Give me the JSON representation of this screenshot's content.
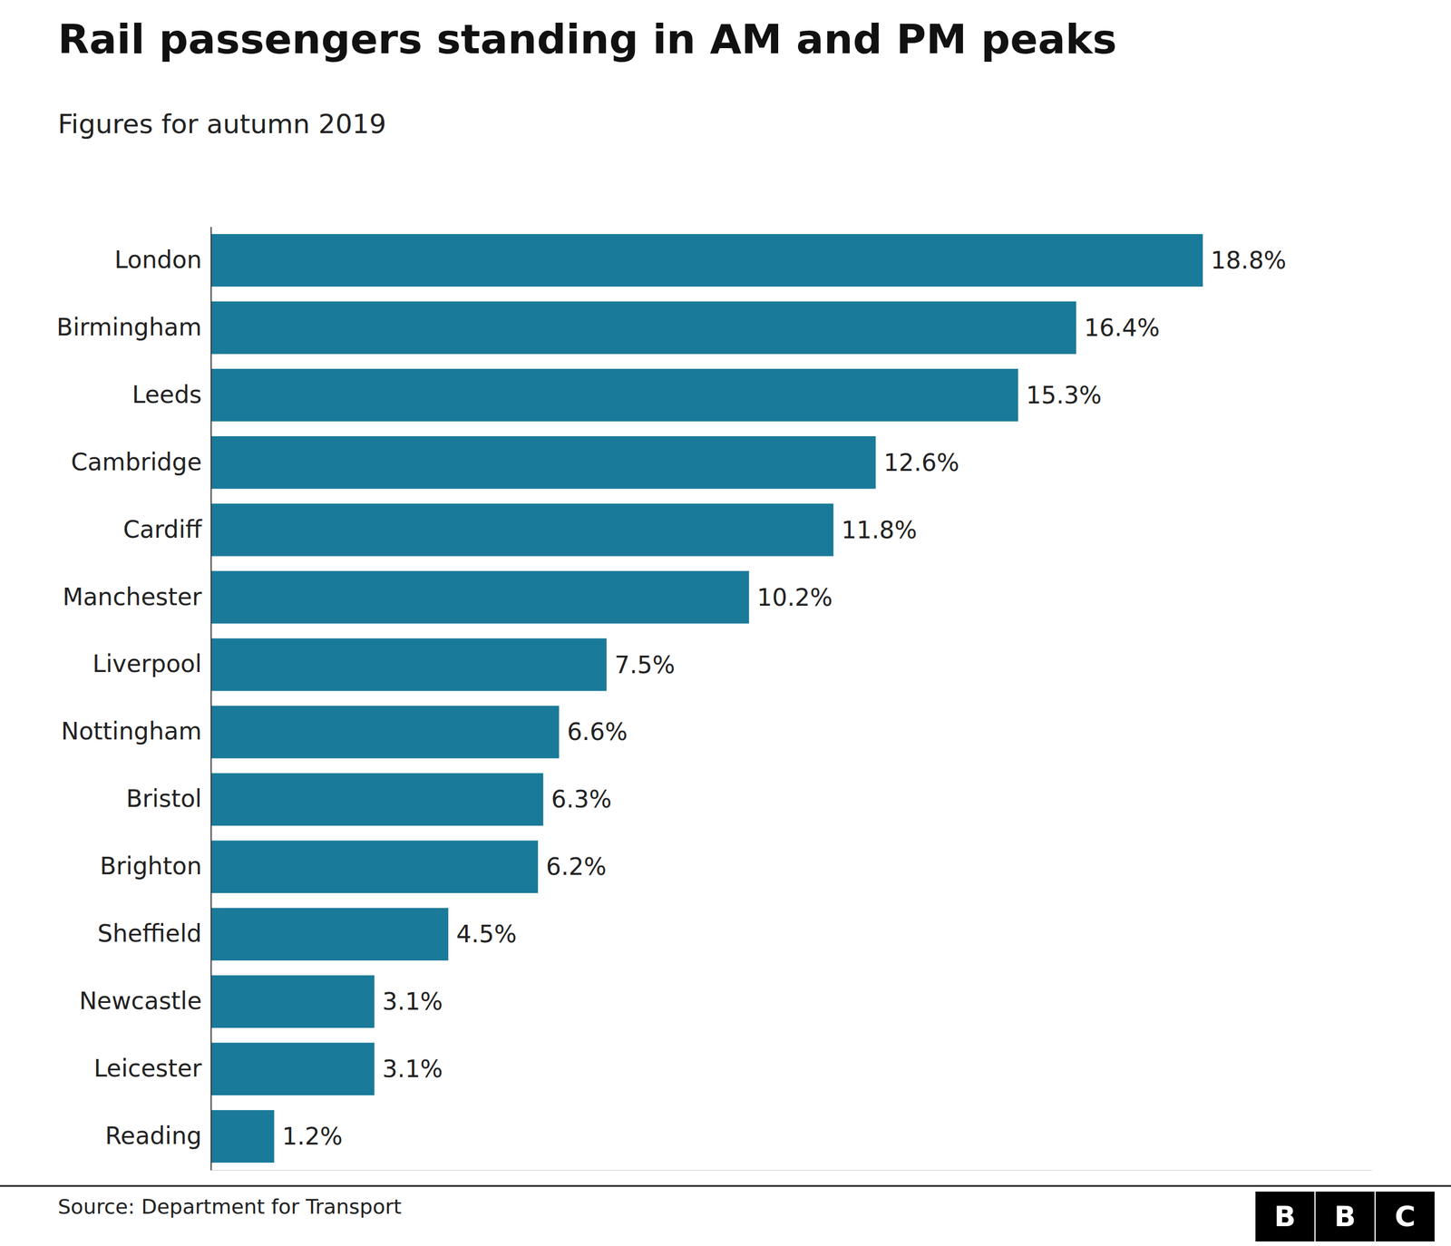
{
  "chart_data": {
    "type": "bar",
    "orientation": "horizontal",
    "title": "Rail passengers standing in AM and PM peaks",
    "subtitle": "Figures for autumn 2019",
    "source": "Source: Department for Transport",
    "logo": [
      "B",
      "B",
      "C"
    ],
    "categories": [
      "London",
      "Birmingham",
      "Leeds",
      "Cambridge",
      "Cardiff",
      "Manchester",
      "Liverpool",
      "Nottingham",
      "Bristol",
      "Brighton",
      "Sheffield",
      "Newcastle",
      "Leicester",
      "Reading"
    ],
    "values": [
      18.8,
      16.4,
      15.3,
      12.6,
      11.8,
      10.2,
      7.5,
      6.6,
      6.3,
      6.2,
      4.5,
      3.1,
      3.1,
      1.2
    ],
    "value_labels": [
      "18.8%",
      "16.4%",
      "15.3%",
      "12.6%",
      "11.8%",
      "10.2%",
      "7.5%",
      "6.6%",
      "6.3%",
      "6.2%",
      "4.5%",
      "3.1%",
      "3.1%",
      "1.2%"
    ],
    "data_labels": true,
    "color": "#1a7a9a",
    "xlim": [
      0,
      22
    ],
    "grid": false,
    "tick_labels": "y"
  }
}
